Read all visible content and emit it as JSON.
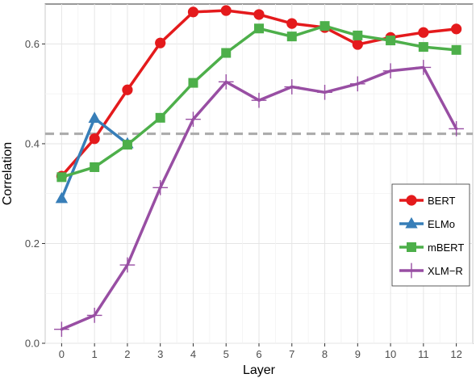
{
  "chart_data": {
    "type": "line",
    "title": "",
    "xlabel": "Layer",
    "ylabel": "Correlation",
    "x": [
      0,
      1,
      2,
      3,
      4,
      5,
      6,
      7,
      8,
      9,
      10,
      11,
      12
    ],
    "xlim": [
      -0.5,
      12.5
    ],
    "ylim": [
      0.0,
      0.68
    ],
    "y_ticks": [
      "0.0",
      "0.2",
      "0.4",
      "0.6"
    ],
    "y_tick_values": [
      0.0,
      0.2,
      0.4,
      0.6
    ],
    "x_ticks": [
      "0",
      "1",
      "2",
      "3",
      "4",
      "5",
      "6",
      "7",
      "8",
      "9",
      "10",
      "11",
      "12"
    ],
    "grid": true,
    "legend_position": "bottom-right",
    "reference_line": {
      "y": 0.42,
      "style": "dashed",
      "color": "#aaaaaa"
    },
    "series": [
      {
        "name": "BERT",
        "color": "#e41a1c",
        "marker": "circle",
        "x": [
          0,
          1,
          2,
          3,
          4,
          5,
          6,
          7,
          8,
          9,
          10,
          11,
          12
        ],
        "values": [
          0.335,
          0.41,
          0.508,
          0.602,
          0.664,
          0.667,
          0.659,
          0.641,
          0.633,
          0.599,
          0.613,
          0.623,
          0.63
        ]
      },
      {
        "name": "ELMo",
        "color": "#377eb8",
        "marker": "triangle",
        "x": [
          0,
          1,
          2
        ],
        "values": [
          0.29,
          0.451,
          0.4
        ]
      },
      {
        "name": "mBERT",
        "color": "#4daf4a",
        "marker": "square",
        "x": [
          0,
          1,
          2,
          3,
          4,
          5,
          6,
          7,
          8,
          9,
          10,
          11,
          12
        ],
        "values": [
          0.333,
          0.353,
          0.398,
          0.452,
          0.522,
          0.582,
          0.631,
          0.615,
          0.636,
          0.617,
          0.607,
          0.594,
          0.588
        ]
      },
      {
        "name": "XLM−R",
        "color": "#984ea3",
        "marker": "cross",
        "x": [
          0,
          1,
          2,
          3,
          4,
          5,
          6,
          7,
          8,
          9,
          10,
          11,
          12
        ],
        "values": [
          0.028,
          0.056,
          0.157,
          0.312,
          0.449,
          0.524,
          0.487,
          0.514,
          0.503,
          0.52,
          0.546,
          0.553,
          0.43
        ]
      }
    ]
  }
}
